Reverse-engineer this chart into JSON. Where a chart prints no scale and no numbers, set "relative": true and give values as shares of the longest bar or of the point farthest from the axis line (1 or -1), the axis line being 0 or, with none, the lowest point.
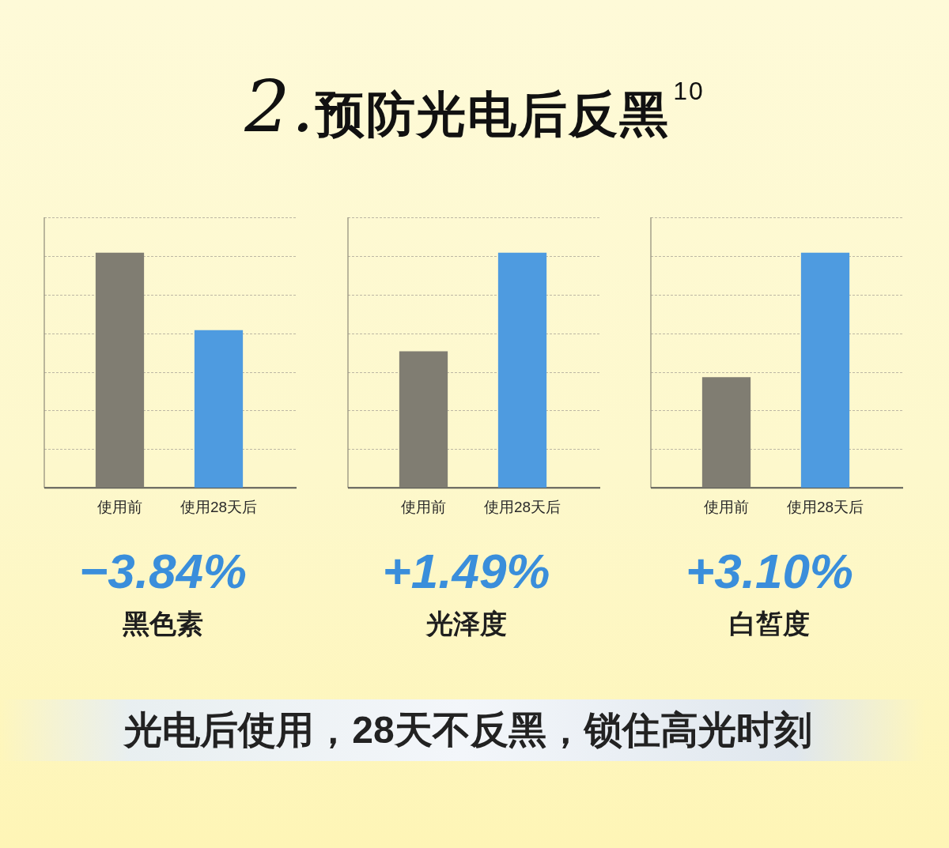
{
  "chart_data": [
    {
      "type": "other",
      "title": "2.预防光电后反黑$^{10}$"
    },
    {
      "type": "bar",
      "title": "黑色素",
      "annotations": [
        "−3.84%"
      ],
      "categories": [
        "使用前",
        "使用28天后"
      ],
      "relative": true,
      "values": [
        1,
        0.67
      ],
      "colors": [
        "#807d72",
        "#4e9be0"
      ],
      "grid": "y"
    },
    {
      "type": "bar",
      "title": "光泽度",
      "annotations": [
        "+1.49%"
      ],
      "categories": [
        "使用前",
        "使用28天后"
      ],
      "relative": true,
      "values": [
        0.58,
        1
      ],
      "colors": [
        "#807d72",
        "#4e9be0"
      ],
      "grid": "y"
    },
    {
      "type": "bar",
      "title": "白皙度",
      "annotations": [
        "+3.10%"
      ],
      "categories": [
        "使用前",
        "使用28天后"
      ],
      "relative": true,
      "values": [
        0.47,
        1
      ],
      "colors": [
        "#807d72",
        "#4e9be0"
      ],
      "grid": "y"
    },
    {
      "type": "other",
      "annotations": [
        "光电后使用，28天不反黑，锁住高光时刻"
      ]
    }
  ]
}
